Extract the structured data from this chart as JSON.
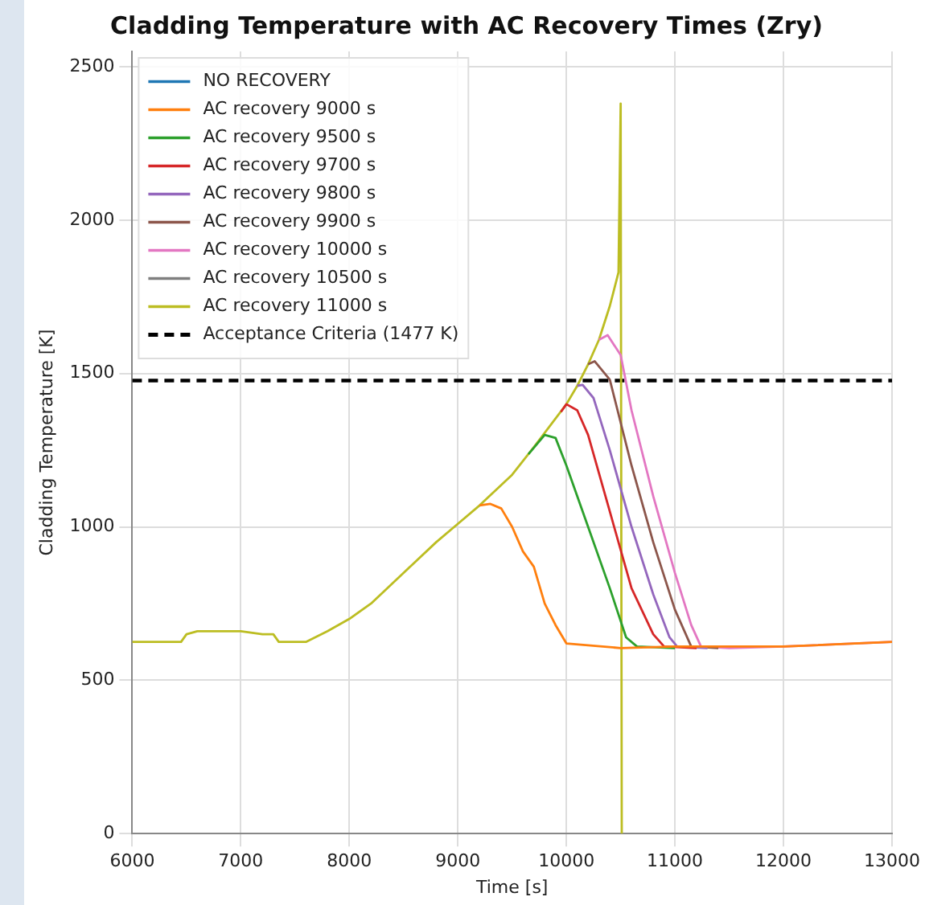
{
  "chart_data": {
    "type": "line",
    "title": "Cladding Temperature with AC Recovery Times (Zry)",
    "xlabel": "Time [s]",
    "ylabel": "Cladding Temperature [K]",
    "xlim": [
      6000,
      13000
    ],
    "xticks": [
      6000,
      7000,
      8000,
      9000,
      10000,
      11000,
      12000,
      13000
    ],
    "ylim": [
      0,
      2550
    ],
    "yticks": [
      0,
      500,
      1000,
      1500,
      2000,
      2500
    ],
    "grid": true,
    "legend": "top left",
    "marker": "none",
    "series": [
      {
        "name": "NO RECOVERY",
        "color": "#1f77b4"
      },
      {
        "name": "AC recovery 9000 s",
        "color": "#ff7f0e",
        "x": [
          9200,
          9300,
          9400,
          9500,
          9600,
          9700,
          9800,
          9900,
          10000,
          10500,
          11000,
          12000,
          13000
        ],
        "values": [
          1070,
          1075,
          1060,
          1000,
          920,
          870,
          750,
          680,
          620,
          605,
          610,
          610,
          625
        ]
      },
      {
        "name": "AC recovery 9500 s",
        "color": "#2ca02c",
        "x": [
          9650,
          9800,
          9900,
          10000,
          10200,
          10400,
          10550,
          10650,
          11000
        ],
        "values": [
          1237,
          1300,
          1290,
          1200,
          1000,
          800,
          640,
          610,
          605
        ]
      },
      {
        "name": "AC recovery 9700 s",
        "color": "#d62728",
        "x": [
          9950,
          10000,
          10100,
          10200,
          10400,
          10600,
          10800,
          10900,
          11200
        ],
        "values": [
          1375,
          1400,
          1380,
          1300,
          1050,
          800,
          650,
          610,
          605
        ]
      },
      {
        "name": "AC recovery 9800 s",
        "color": "#9467bd",
        "x": [
          10100,
          10150,
          10250,
          10400,
          10600,
          10800,
          10950,
          11020,
          11300
        ],
        "values": [
          1460,
          1463,
          1420,
          1250,
          1000,
          780,
          640,
          610,
          605
        ]
      },
      {
        "name": "AC recovery 9900 s",
        "color": "#8c564b",
        "x": [
          10200,
          10260,
          10400,
          10600,
          10800,
          11000,
          11150,
          11400
        ],
        "values": [
          1530,
          1540,
          1480,
          1200,
          950,
          730,
          610,
          605
        ]
      },
      {
        "name": "AC recovery 10000 s",
        "color": "#e377c2",
        "x": [
          10300,
          10380,
          10500,
          10600,
          10800,
          11000,
          11150,
          11240,
          11500,
          12000,
          13000
        ],
        "values": [
          1610,
          1625,
          1560,
          1380,
          1100,
          850,
          680,
          610,
          605,
          610,
          625
        ]
      },
      {
        "name": "AC recovery 10500 s",
        "color": "#7f7f7f"
      },
      {
        "name": "AC recovery 11000 s",
        "color": "#bcbd22",
        "x": [
          6000,
          6450,
          6500,
          6600,
          7000,
          7200,
          7300,
          7350,
          7600,
          7800,
          8000,
          8200,
          8500,
          8800,
          9000,
          9200,
          9500,
          9700,
          10000,
          10100,
          10200,
          10300,
          10400,
          10480,
          10500,
          10510
        ],
        "values": [
          625,
          625,
          650,
          660,
          660,
          650,
          650,
          625,
          625,
          660,
          700,
          750,
          850,
          950,
          1010,
          1070,
          1170,
          1260,
          1400,
          1460,
          1530,
          1610,
          1720,
          1830,
          2380,
          0
        ]
      },
      {
        "name": "Acceptance Criteria (1477 K)",
        "color": "#000000",
        "line_style": "dashed",
        "x": [
          6000,
          13000
        ],
        "values": [
          1477,
          1477
        ]
      }
    ]
  }
}
